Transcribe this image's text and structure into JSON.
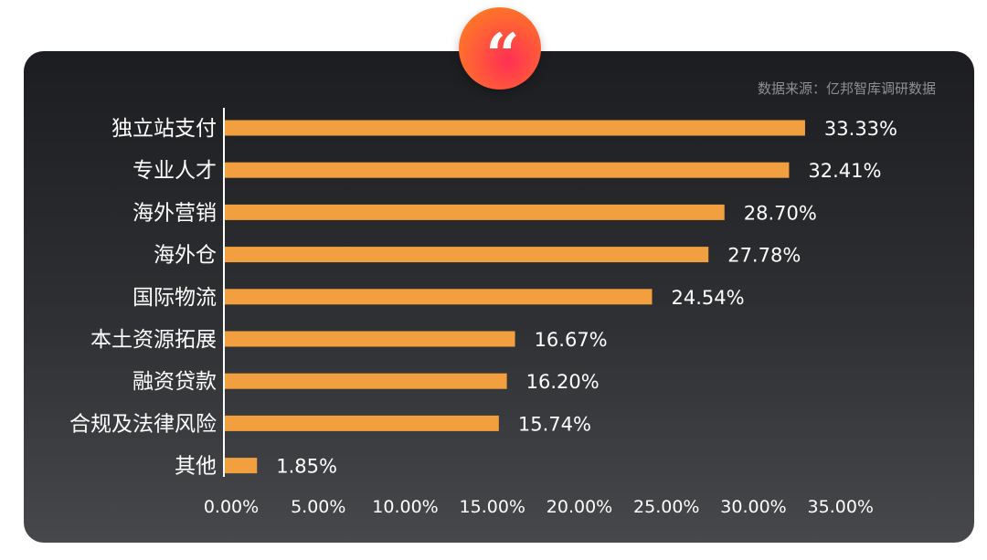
{
  "source_note": "数据来源：亿邦智库调研数据",
  "quote_glyph": "“",
  "colors": {
    "bar": "#f2a03f",
    "text": "#ffffff",
    "source": "#8e9095",
    "axis": "#ffffff"
  },
  "chart_data": {
    "type": "bar",
    "orientation": "horizontal",
    "categories": [
      "独立站支付",
      "专业人才",
      "海外营销",
      "海外仓",
      "国际物流",
      "本土资源拓展",
      "融资贷款",
      "合规及法律风险",
      "其他"
    ],
    "values": [
      33.33,
      32.41,
      28.7,
      27.78,
      24.54,
      16.67,
      16.2,
      15.74,
      1.85
    ],
    "value_labels": [
      "33.33%",
      "32.41%",
      "28.70%",
      "27.78%",
      "24.54%",
      "16.67%",
      "16.20%",
      "15.74%",
      "1.85%"
    ],
    "x_ticks": [
      0,
      5,
      10,
      15,
      20,
      25,
      30,
      35
    ],
    "x_tick_labels": [
      "0.00%",
      "5.00%",
      "10.00%",
      "15.00%",
      "20.00%",
      "25.00%",
      "30.00%",
      "35.00%"
    ],
    "xlim": [
      0,
      35
    ],
    "grid": false,
    "legend": "none"
  }
}
